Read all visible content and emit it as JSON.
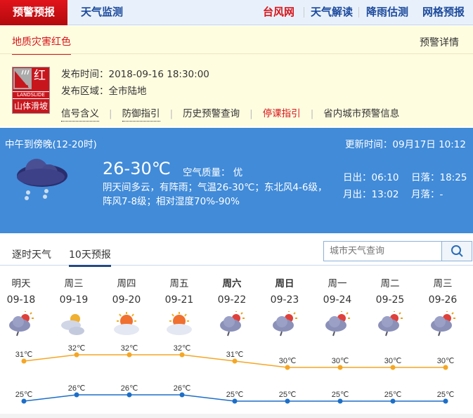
{
  "topnav": {
    "active": "预警预报",
    "left": "天气监测",
    "right": [
      {
        "label": "台风网",
        "color": "#d7161c"
      },
      {
        "label": "天气解读",
        "color": "#1c4a9c"
      },
      {
        "label": "降雨估测",
        "color": "#1c4a9c"
      },
      {
        "label": "网格预报",
        "color": "#1c4a9c"
      }
    ]
  },
  "warning": {
    "tab": "地质灾害红色",
    "detail_link": "预警详情",
    "badge": {
      "level": "红",
      "english": "LANDSLIDE",
      "chinese": "山体滑坡",
      "color": "#c8161d"
    },
    "time_label": "发布时间：2018-09-16 18:30:00",
    "area_label": "发布区域：全市陆地",
    "links": [
      "信号含义",
      "防御指引",
      "历史预警查询",
      "停课指引",
      "省内城市预警信息"
    ]
  },
  "current": {
    "period": "中午到傍晚(12-20时)",
    "updated": "更新时间：09月17日 10:12",
    "icon": "rain-cloud-icon",
    "temp": "26-30℃",
    "air_quality": "空气质量： 优",
    "description": "阴天间多云，有阵雨；气温26-30℃；东北风4-6级，阵风7-8级；相对湿度70%-90%",
    "sunrise": "日出：06:10",
    "sunset": "日落：18:25",
    "moonrise": "月出：13:02",
    "moonset": "月落：-",
    "bg": "#418bd9"
  },
  "forecast_tabs": [
    "逐时天气",
    "10天预报"
  ],
  "search": {
    "placeholder": "城市天气查询"
  },
  "chart_data": {
    "type": "line",
    "categories": [
      "09-18",
      "09-19",
      "09-20",
      "09-21",
      "09-22",
      "09-23",
      "09-24",
      "09-25",
      "09-26"
    ],
    "weekdays": [
      "明天",
      "周三",
      "周四",
      "周五",
      "周六",
      "周日",
      "周一",
      "周二",
      "周三"
    ],
    "icons": [
      "showers",
      "partly-cloudy",
      "sunny-cloudy",
      "sunny-cloudy",
      "showers",
      "showers",
      "showers",
      "showers",
      "showers"
    ],
    "series": [
      {
        "values": [
          31,
          32,
          32,
          32,
          31,
          30,
          30,
          30,
          30
        ],
        "color": "#f5a623"
      },
      {
        "values": [
          25,
          26,
          26,
          26,
          25,
          25,
          25,
          25,
          25
        ],
        "color": "#1c6fc8"
      }
    ],
    "unit": "℃"
  }
}
